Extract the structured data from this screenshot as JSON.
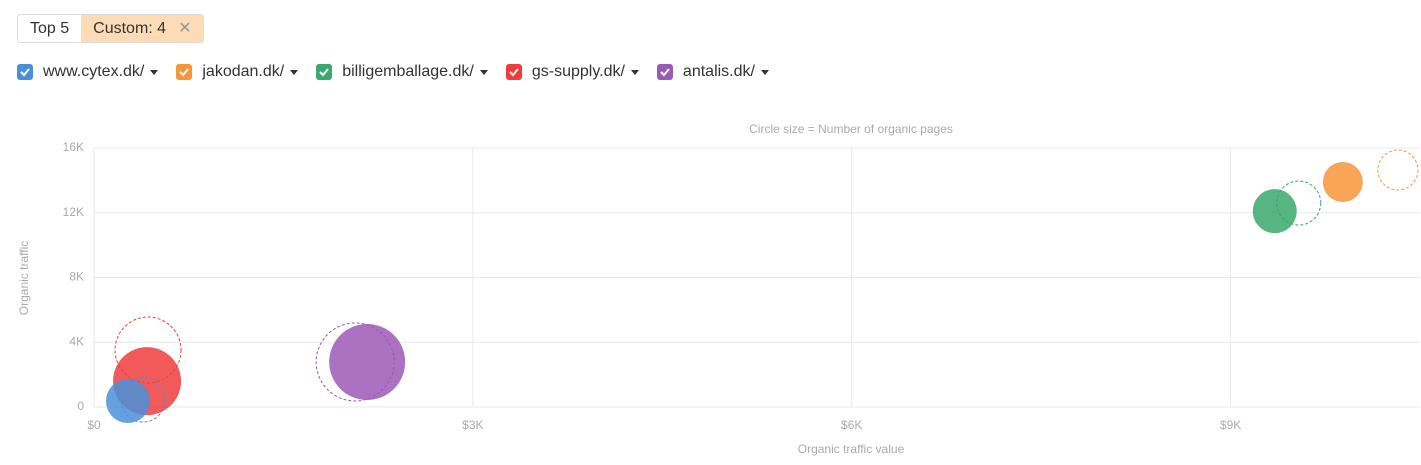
{
  "tabs": [
    "Top 5",
    "Custom: 4"
  ],
  "chart_data": {
    "type": "bubble",
    "subtitle": "Circle size = Number of organic pages",
    "x_label": "Organic traffic value",
    "y_label": "Organic traffic",
    "xlim": [
      0,
      10500
    ],
    "ylim": [
      0,
      16000
    ],
    "xticks": [
      {
        "value": 0,
        "label": "$0"
      },
      {
        "value": 3000,
        "label": "$3K"
      },
      {
        "value": 6000,
        "label": "$6K"
      },
      {
        "value": 9000,
        "label": "$9K"
      }
    ],
    "yticks": [
      0,
      {
        "value": 4000,
        "label": "4K"
      },
      {
        "value": 8000,
        "label": "8K"
      },
      {
        "value": 12000,
        "label": "12K"
      },
      {
        "value": 16000,
        "label": "16K"
      }
    ],
    "grid": true,
    "series": [
      {
        "name": "www.cytex.dk/",
        "color": "#4a90d9",
        "x": [
          269,
          388
        ],
        "y": [
          370,
          430
        ],
        "size": [
          484,
          484
        ]
      },
      {
        "name": "jakodan.dk/",
        "color": "#f7953a",
        "x": [
          9889,
          10325
        ],
        "y": [
          13900,
          14640
        ],
        "size": [
          400,
          400
        ]
      },
      {
        "name": "billigemballage.dk/",
        "color": "#3aa76d",
        "x": [
          9350,
          9540
        ],
        "y": [
          12100,
          12600
        ],
        "size": [
          484,
          484
        ]
      },
      {
        "name": "gs-supply.dk/",
        "color": "#f03c3c",
        "x": [
          420,
          428
        ],
        "y": [
          1600,
          3520
        ],
        "size": [
          1156,
          1089
        ]
      },
      {
        "name": "antalis.dk/",
        "color": "#9b59b6",
        "x": [
          2163,
          2068
        ],
        "y": [
          2780,
          2780
        ],
        "size": [
          1444,
          1521
        ]
      }
    ]
  }
}
